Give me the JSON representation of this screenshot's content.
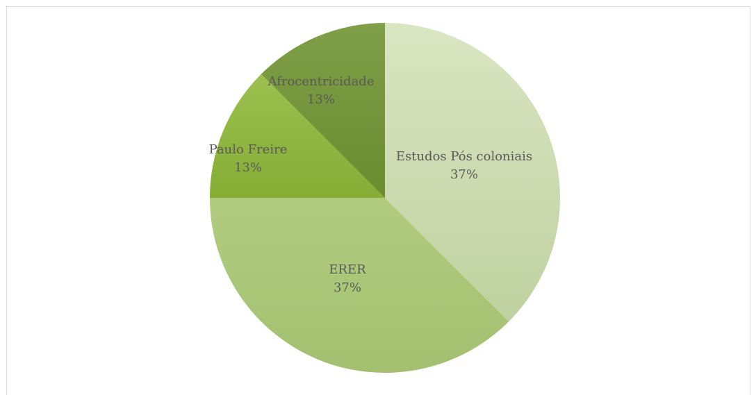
{
  "chart_data": {
    "type": "pie",
    "start_angle_deg": 0,
    "direction": "clockwise",
    "slices": [
      {
        "label": "Estudos Pós coloniais",
        "percent_label": "37%",
        "value": 37.5,
        "color": "#c9dbac"
      },
      {
        "label": "ERER",
        "percent_label": "37%",
        "value": 37.5,
        "color": "#a9c576"
      },
      {
        "label": "Paulo Freire",
        "percent_label": "13%",
        "value": 12.5,
        "color": "#8db43e"
      },
      {
        "label": "Afrocentricidade",
        "percent_label": "13%",
        "value": 12.5,
        "color": "#75963a"
      }
    ]
  }
}
